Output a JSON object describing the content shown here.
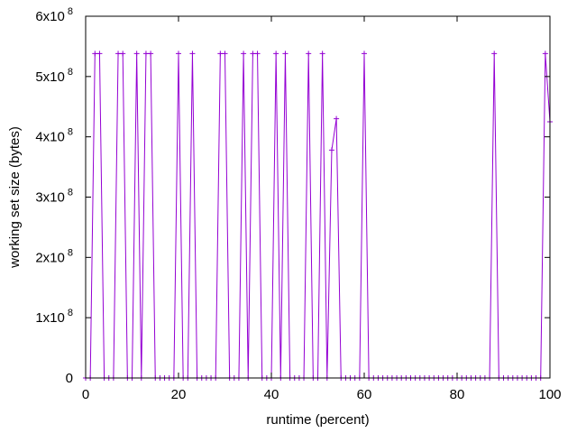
{
  "chart_data": {
    "type": "line",
    "title": "",
    "xlabel": "runtime (percent)",
    "ylabel": "working set size (bytes)",
    "xlim": [
      0,
      100
    ],
    "ylim": [
      0,
      600000000
    ],
    "x_ticks": [
      {
        "value": 0,
        "label": "0"
      },
      {
        "value": 20,
        "label": "20"
      },
      {
        "value": 40,
        "label": "40"
      },
      {
        "value": 60,
        "label": "60"
      },
      {
        "value": 80,
        "label": "80"
      },
      {
        "value": 100,
        "label": "100"
      }
    ],
    "y_ticks": [
      {
        "value": 0,
        "base": "0",
        "exp": ""
      },
      {
        "value": 100000000,
        "base": "1x10",
        "exp": "8"
      },
      {
        "value": 200000000,
        "base": "2x10",
        "exp": "8"
      },
      {
        "value": 300000000,
        "base": "3x10",
        "exp": "8"
      },
      {
        "value": 400000000,
        "base": "4x10",
        "exp": "8"
      },
      {
        "value": 500000000,
        "base": "5x10",
        "exp": "8"
      },
      {
        "value": 600000000,
        "base": "6x10",
        "exp": "8"
      }
    ],
    "grid": false,
    "legend": "none",
    "series": [
      {
        "color": "#9400d3",
        "marker": "plus",
        "points": [
          [
            0,
            0
          ],
          [
            1,
            0
          ],
          [
            2,
            538000000
          ],
          [
            3,
            538000000
          ],
          [
            4,
            0
          ],
          [
            5,
            0
          ],
          [
            6,
            0
          ],
          [
            7,
            538000000
          ],
          [
            8,
            538000000
          ],
          [
            9,
            0
          ],
          [
            10,
            0
          ],
          [
            11,
            538000000
          ],
          [
            12,
            0
          ],
          [
            13,
            538000000
          ],
          [
            14,
            538000000
          ],
          [
            15,
            0
          ],
          [
            16,
            0
          ],
          [
            17,
            0
          ],
          [
            18,
            0
          ],
          [
            19,
            0
          ],
          [
            20,
            538000000
          ],
          [
            21,
            0
          ],
          [
            22,
            0
          ],
          [
            23,
            538000000
          ],
          [
            24,
            0
          ],
          [
            25,
            0
          ],
          [
            26,
            0
          ],
          [
            27,
            0
          ],
          [
            28,
            0
          ],
          [
            29,
            538000000
          ],
          [
            30,
            538000000
          ],
          [
            31,
            0
          ],
          [
            32,
            0
          ],
          [
            33,
            0
          ],
          [
            34,
            538000000
          ],
          [
            35,
            0
          ],
          [
            36,
            538000000
          ],
          [
            37,
            538000000
          ],
          [
            38,
            0
          ],
          [
            39,
            0
          ],
          [
            40,
            0
          ],
          [
            41,
            538000000
          ],
          [
            42,
            0
          ],
          [
            43,
            538000000
          ],
          [
            44,
            0
          ],
          [
            45,
            0
          ],
          [
            46,
            0
          ],
          [
            47,
            0
          ],
          [
            48,
            538000000
          ],
          [
            49,
            0
          ],
          [
            50,
            0
          ],
          [
            51,
            538000000
          ],
          [
            52,
            0
          ],
          [
            53,
            378000000
          ],
          [
            54,
            430000000
          ],
          [
            55,
            0
          ],
          [
            56,
            0
          ],
          [
            57,
            0
          ],
          [
            58,
            0
          ],
          [
            59,
            0
          ],
          [
            60,
            538000000
          ],
          [
            61,
            0
          ],
          [
            62,
            0
          ],
          [
            63,
            0
          ],
          [
            64,
            0
          ],
          [
            65,
            0
          ],
          [
            66,
            0
          ],
          [
            67,
            0
          ],
          [
            68,
            0
          ],
          [
            69,
            0
          ],
          [
            70,
            0
          ],
          [
            71,
            0
          ],
          [
            72,
            0
          ],
          [
            73,
            0
          ],
          [
            74,
            0
          ],
          [
            75,
            0
          ],
          [
            76,
            0
          ],
          [
            77,
            0
          ],
          [
            78,
            0
          ],
          [
            79,
            0
          ],
          [
            80,
            0
          ],
          [
            81,
            0
          ],
          [
            82,
            0
          ],
          [
            83,
            0
          ],
          [
            84,
            0
          ],
          [
            85,
            0
          ],
          [
            86,
            0
          ],
          [
            87,
            0
          ],
          [
            88,
            538000000
          ],
          [
            89,
            0
          ],
          [
            90,
            0
          ],
          [
            91,
            0
          ],
          [
            92,
            0
          ],
          [
            93,
            0
          ],
          [
            94,
            0
          ],
          [
            95,
            0
          ],
          [
            96,
            0
          ],
          [
            97,
            0
          ],
          [
            98,
            0
          ],
          [
            99,
            538000000
          ],
          [
            100,
            425000000
          ]
        ]
      }
    ]
  }
}
